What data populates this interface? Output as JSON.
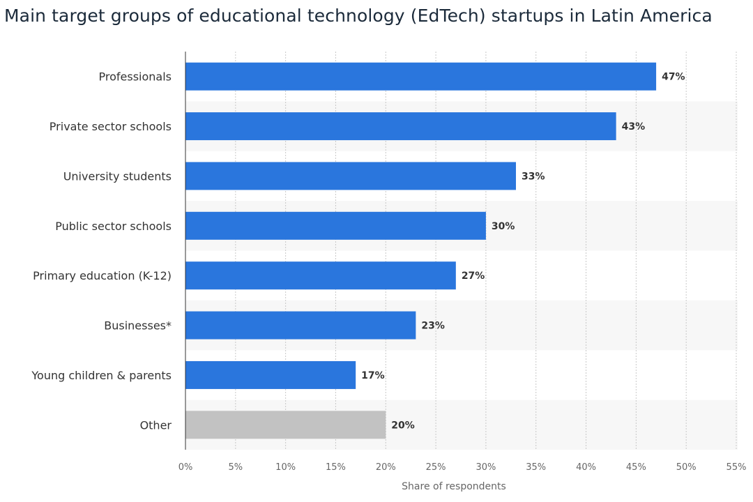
{
  "chart_data": {
    "type": "bar",
    "orientation": "horizontal",
    "title": "Main target groups of educational technology (EdTech) startups in Latin America",
    "xlabel": "Share of respondents",
    "ylabel": "",
    "xlim": [
      0,
      55
    ],
    "ticks": [
      "0%",
      "5%",
      "10%",
      "15%",
      "20%",
      "25%",
      "30%",
      "35%",
      "40%",
      "45%",
      "50%",
      "55%"
    ],
    "tick_values": [
      0,
      5,
      10,
      15,
      20,
      25,
      30,
      35,
      40,
      45,
      50,
      55
    ],
    "categories": [
      "Professionals",
      "Private sector schools",
      "University students",
      "Public sector schools",
      "Primary education (K-12)",
      "Businesses*",
      "Young children & parents",
      "Other"
    ],
    "values": [
      47,
      43,
      33,
      30,
      27,
      23,
      17,
      20
    ],
    "value_labels": [
      "47%",
      "43%",
      "33%",
      "30%",
      "27%",
      "23%",
      "17%",
      "20%"
    ],
    "bar_colors": [
      "#2a76dd",
      "#2a76dd",
      "#2a76dd",
      "#2a76dd",
      "#2a76dd",
      "#2a76dd",
      "#2a76dd",
      "#c2c2c2"
    ],
    "grid": true,
    "legend": "none"
  }
}
